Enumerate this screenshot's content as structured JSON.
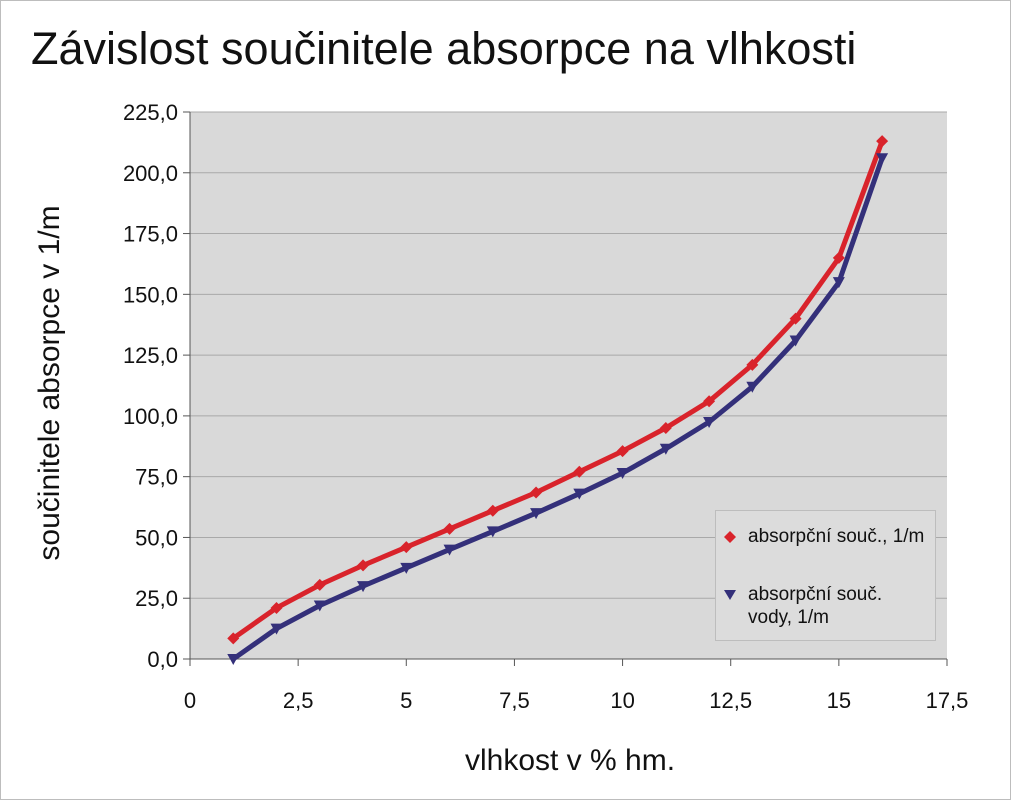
{
  "chart_data": {
    "type": "line",
    "title": "Závislost součinitele absorpce na vlhkosti",
    "xlabel": "vlhkost v % hm.",
    "ylabel": "součinitele absorpce v 1/m",
    "xlim": [
      0,
      17.5
    ],
    "ylim": [
      0,
      225
    ],
    "x_ticks": [
      "0",
      "2,5",
      "5",
      "7,5",
      "10",
      "12,5",
      "15",
      "17,5"
    ],
    "y_ticks": [
      "0,0",
      "25,0",
      "50,0",
      "75,0",
      "100,0",
      "125,0",
      "150,0",
      "175,0",
      "200,0",
      "225,0"
    ],
    "grid": "horizontal",
    "legend_position": "bottom-right",
    "background": "#d9d9d9",
    "series": [
      {
        "name": "absorpční souč., 1/m",
        "color": "#d9232b",
        "marker": "diamond",
        "x": [
          1,
          2,
          3,
          4,
          5,
          6,
          7,
          8,
          9,
          10,
          11,
          12,
          13,
          14,
          15,
          16
        ],
        "y": [
          8.5,
          21,
          30.5,
          38.5,
          46,
          53.5,
          61,
          68.5,
          77,
          85.5,
          95,
          106,
          121,
          140,
          165,
          213
        ]
      },
      {
        "name": "absorpční souč. vody, 1/m",
        "color": "#34307a",
        "marker": "triangle-down",
        "x": [
          1,
          2,
          3,
          4,
          5,
          6,
          7,
          8,
          9,
          10,
          11,
          12,
          13,
          14,
          15,
          16
        ],
        "y": [
          0,
          12.5,
          22,
          30,
          37.5,
          45,
          52.5,
          60,
          68,
          76.5,
          86.5,
          97.5,
          112,
          131,
          155,
          206
        ]
      }
    ]
  }
}
